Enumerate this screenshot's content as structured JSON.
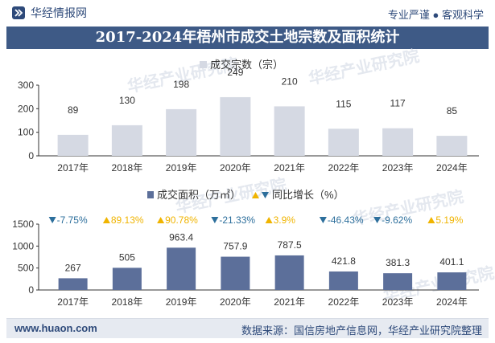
{
  "header": {
    "brand": "华经情报网",
    "slogan": "专业严谨 ● 客观科学"
  },
  "title": "2017-2024年梧州市成交土地宗数及面积统计",
  "watermark": "华经产业研究院",
  "footer": {
    "website": "www.huaon.com",
    "source": "数据来源：国信房地产信息网，华经产业研究院整理"
  },
  "colors": {
    "bar1": "#d5d9e3",
    "bar2": "#5c6f9a",
    "up": "#f0b400",
    "down": "#2d6f9c",
    "title_bg": "#3e5a86"
  },
  "chart_data": [
    {
      "type": "bar",
      "categories": [
        "2017年",
        "2018年",
        "2019年",
        "2020年",
        "2021年",
        "2022年",
        "2023年",
        "2024年"
      ],
      "series": [
        {
          "name": "成交宗数（宗）",
          "values": [
            89,
            130,
            198,
            249,
            210,
            115,
            117,
            85
          ]
        }
      ],
      "legend": "成交宗数（宗）",
      "ylim": [
        0,
        300
      ],
      "yticks": [
        0,
        100,
        200,
        300
      ]
    },
    {
      "type": "bar",
      "categories": [
        "2017年",
        "2018年",
        "2019年",
        "2020年",
        "2021年",
        "2022年",
        "2023年",
        "2024年"
      ],
      "series": [
        {
          "name": "成交面积（万㎡）",
          "values": [
            267,
            505,
            963.4,
            757.9,
            787.5,
            421.8,
            381.3,
            401.1
          ]
        }
      ],
      "value_labels": [
        "267",
        "505",
        "963.4",
        "757.9",
        "787.5",
        "421.8",
        "381.3",
        "401.1"
      ],
      "growth": [
        {
          "dir": "down",
          "label": "-7.75%"
        },
        {
          "dir": "up",
          "label": "89.13%"
        },
        {
          "dir": "up",
          "label": "90.78%"
        },
        {
          "dir": "down",
          "label": "-21.33%"
        },
        {
          "dir": "up",
          "label": "3.9%"
        },
        {
          "dir": "down",
          "label": "-46.43%"
        },
        {
          "dir": "down",
          "label": "-9.62%"
        },
        {
          "dir": "up",
          "label": "5.19%"
        }
      ],
      "legend_area": "成交面积（万㎡）",
      "legend_growth": "同比增长（%）",
      "ylim": [
        0,
        1500
      ],
      "yticks": [
        0,
        500,
        1000,
        1500
      ]
    }
  ]
}
